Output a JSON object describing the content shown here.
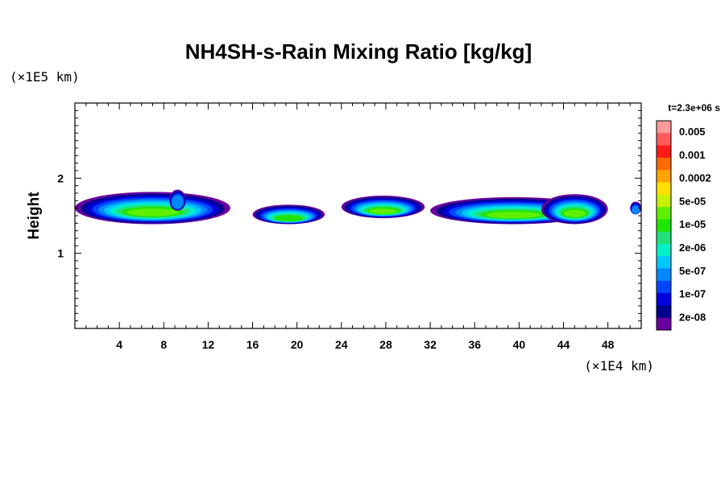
{
  "chart_data": {
    "type": "heatmap",
    "title": "NH4SH-s-Rain Mixing Ratio [kg/kg]",
    "xlabel": "",
    "ylabel": "Height",
    "x_unit": "(×1E4 km)",
    "y_unit": "(×1E5 km)",
    "time_label": "t=2.3e+06 s",
    "xlim": [
      0,
      51
    ],
    "ylim": [
      0,
      3
    ],
    "x_ticks": [
      "4",
      "8",
      "12",
      "16",
      "20",
      "24",
      "28",
      "32",
      "36",
      "40",
      "44",
      "48"
    ],
    "y_ticks": [
      "1",
      "2"
    ],
    "colorbar": {
      "labels": [
        "0.005",
        "0.001",
        "0.0002",
        "5e-05",
        "1e-05",
        "2e-06",
        "5e-07",
        "1e-07",
        "2e-08"
      ],
      "colors": [
        "#ff9a9a",
        "#ff5a5a",
        "#ff1a1a",
        "#ff6a00",
        "#ffa500",
        "#ffe100",
        "#c8f000",
        "#5ef000",
        "#1ee600",
        "#22e07a",
        "#00f0c8",
        "#00c8ff",
        "#0088ff",
        "#0044ff",
        "#0000dd",
        "#000090",
        "#6a00a0"
      ]
    },
    "clouds": [
      {
        "x_range": [
          0,
          14
        ],
        "height_range": [
          1.42,
          1.85
        ],
        "peak": "5e-05"
      },
      {
        "x_range": [
          8.5,
          10
        ],
        "height_range": [
          1.6,
          1.88
        ],
        "peak": "1e-07"
      },
      {
        "x_range": [
          16,
          22.5
        ],
        "height_range": [
          1.42,
          1.68
        ],
        "peak": "1e-05"
      },
      {
        "x_range": [
          24,
          31.5
        ],
        "height_range": [
          1.5,
          1.8
        ],
        "peak": "5e-05"
      },
      {
        "x_range": [
          32,
          47
        ],
        "height_range": [
          1.42,
          1.78
        ],
        "peak": "5e-05"
      },
      {
        "x_range": [
          42,
          48
        ],
        "height_range": [
          1.42,
          1.82
        ],
        "peak": "5e-05"
      },
      {
        "x_range": [
          50,
          51
        ],
        "height_range": [
          1.55,
          1.72
        ],
        "peak": "1e-07"
      }
    ]
  }
}
